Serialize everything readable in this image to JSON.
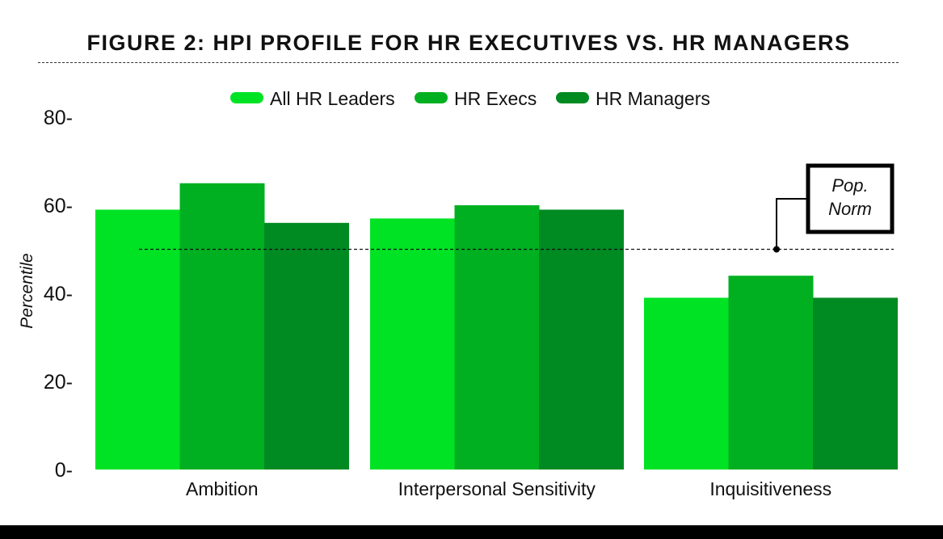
{
  "chart_data": {
    "type": "bar",
    "title": "FIGURE 2: HPI PROFILE FOR HR EXECUTIVES VS. HR MANAGERS",
    "xlabel": "",
    "ylabel": "Percentile",
    "ylim": [
      0,
      80
    ],
    "yticks": [
      0,
      20,
      40,
      60,
      80
    ],
    "ytick_labels": [
      "0-",
      "20-",
      "40-",
      "60-",
      "80-"
    ],
    "categories": [
      "Ambition",
      "Interpersonal Sensitivity",
      "Inquisitiveness"
    ],
    "series": [
      {
        "name": "All HR Leaders",
        "color": "#00e324",
        "values": [
          59,
          57,
          39
        ]
      },
      {
        "name": "HR Execs",
        "color": "#00b020",
        "values": [
          65,
          60,
          44
        ]
      },
      {
        "name": "HR Managers",
        "color": "#008a22",
        "values": [
          56,
          59,
          39
        ]
      }
    ],
    "legend_position": "top-center",
    "grid": false,
    "reference_line": {
      "value": 50,
      "label_line1": "Pop.",
      "label_line2": "Norm",
      "style": "dashed"
    }
  }
}
